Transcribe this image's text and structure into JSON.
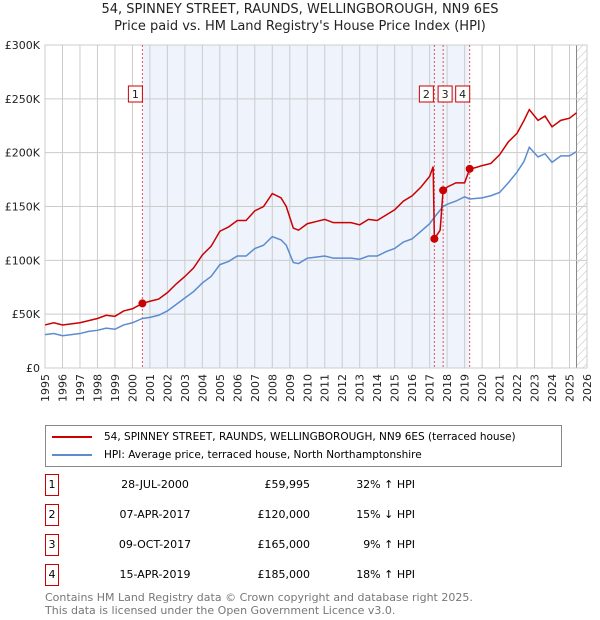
{
  "title": "54, SPINNEY STREET, RAUNDS, WELLINGBOROUGH, NN9 6ES",
  "subtitle": "Price paid vs. HM Land Registry's House Price Index (HPI)",
  "chart_data": {
    "type": "line",
    "ylim": [
      0,
      300000
    ],
    "xlim": [
      1995,
      2026
    ],
    "yticks": [
      0,
      50000,
      100000,
      150000,
      200000,
      250000,
      300000
    ],
    "ytick_labels": [
      "£0",
      "£50K",
      "£100K",
      "£150K",
      "£200K",
      "£250K",
      "£300K"
    ],
    "xticks": [
      1995,
      1996,
      1997,
      1998,
      1999,
      2000,
      2001,
      2002,
      2003,
      2004,
      2005,
      2006,
      2007,
      2008,
      2009,
      2010,
      2011,
      2012,
      2013,
      2014,
      2015,
      2016,
      2017,
      2018,
      2019,
      2020,
      2021,
      2022,
      2023,
      2024,
      2025,
      2026
    ],
    "grid": true,
    "shaded_range": [
      2000.57,
      2019.29
    ],
    "forecast_hatch_from": 2025.4,
    "series": [
      {
        "name": "54, SPINNEY STREET, RAUNDS, WELLINGBOROUGH, NN9 6ES (terraced house)",
        "color": "#cc0000",
        "points": [
          [
            1995,
            40000
          ],
          [
            1995.5,
            42000
          ],
          [
            1996,
            40000
          ],
          [
            1996.5,
            41000
          ],
          [
            1997,
            42000
          ],
          [
            1997.5,
            44000
          ],
          [
            1998,
            46000
          ],
          [
            1998.5,
            49000
          ],
          [
            1999,
            48000
          ],
          [
            1999.5,
            53000
          ],
          [
            2000,
            55000
          ],
          [
            2000.57,
            59995
          ],
          [
            2001,
            62000
          ],
          [
            2001.5,
            64000
          ],
          [
            2002,
            70000
          ],
          [
            2002.5,
            78000
          ],
          [
            2003,
            85000
          ],
          [
            2003.5,
            93000
          ],
          [
            2004,
            105000
          ],
          [
            2004.5,
            113000
          ],
          [
            2005,
            127000
          ],
          [
            2005.5,
            131000
          ],
          [
            2006,
            137000
          ],
          [
            2006.5,
            137000
          ],
          [
            2007,
            146000
          ],
          [
            2007.5,
            150000
          ],
          [
            2008,
            162000
          ],
          [
            2008.5,
            158000
          ],
          [
            2008.8,
            150000
          ],
          [
            2009.2,
            130000
          ],
          [
            2009.5,
            128000
          ],
          [
            2010,
            134000
          ],
          [
            2010.5,
            136000
          ],
          [
            2011,
            138000
          ],
          [
            2011.5,
            135000
          ],
          [
            2012,
            135000
          ],
          [
            2012.5,
            135000
          ],
          [
            2013,
            133000
          ],
          [
            2013.5,
            138000
          ],
          [
            2014,
            137000
          ],
          [
            2014.5,
            142000
          ],
          [
            2015,
            147000
          ],
          [
            2015.5,
            155000
          ],
          [
            2016,
            160000
          ],
          [
            2016.5,
            168000
          ],
          [
            2017,
            178000
          ],
          [
            2017.2,
            187000
          ],
          [
            2017.27,
            120000
          ],
          [
            2017.6,
            128000
          ],
          [
            2017.77,
            165000
          ],
          [
            2018,
            168000
          ],
          [
            2018.5,
            172000
          ],
          [
            2019,
            172000
          ],
          [
            2019.29,
            185000
          ],
          [
            2019.6,
            186000
          ],
          [
            2020,
            188000
          ],
          [
            2020.5,
            190000
          ],
          [
            2021,
            198000
          ],
          [
            2021.5,
            210000
          ],
          [
            2022,
            218000
          ],
          [
            2022.4,
            230000
          ],
          [
            2022.7,
            240000
          ],
          [
            2023.2,
            230000
          ],
          [
            2023.6,
            234000
          ],
          [
            2024,
            224000
          ],
          [
            2024.5,
            230000
          ],
          [
            2025,
            232000
          ],
          [
            2025.4,
            237000
          ]
        ]
      },
      {
        "name": "HPI: Average price, terraced house, North Northamptonshire",
        "color": "#5b8ccf",
        "points": [
          [
            1995,
            31000
          ],
          [
            1995.5,
            32000
          ],
          [
            1996,
            30000
          ],
          [
            1996.5,
            31000
          ],
          [
            1997,
            32000
          ],
          [
            1997.5,
            34000
          ],
          [
            1998,
            35000
          ],
          [
            1998.5,
            37000
          ],
          [
            1999,
            36000
          ],
          [
            1999.5,
            40000
          ],
          [
            2000,
            42000
          ],
          [
            2000.57,
            46000
          ],
          [
            2001,
            47000
          ],
          [
            2001.5,
            49000
          ],
          [
            2002,
            53000
          ],
          [
            2002.5,
            59000
          ],
          [
            2003,
            65000
          ],
          [
            2003.5,
            71000
          ],
          [
            2004,
            79000
          ],
          [
            2004.5,
            85000
          ],
          [
            2005,
            96000
          ],
          [
            2005.5,
            99000
          ],
          [
            2006,
            104000
          ],
          [
            2006.5,
            104000
          ],
          [
            2007,
            111000
          ],
          [
            2007.5,
            114000
          ],
          [
            2008,
            122000
          ],
          [
            2008.5,
            119000
          ],
          [
            2008.8,
            114000
          ],
          [
            2009.2,
            98000
          ],
          [
            2009.5,
            97000
          ],
          [
            2010,
            102000
          ],
          [
            2010.5,
            103000
          ],
          [
            2011,
            104000
          ],
          [
            2011.5,
            102000
          ],
          [
            2012,
            102000
          ],
          [
            2012.5,
            102000
          ],
          [
            2013,
            101000
          ],
          [
            2013.5,
            104000
          ],
          [
            2014,
            104000
          ],
          [
            2014.5,
            108000
          ],
          [
            2015,
            111000
          ],
          [
            2015.5,
            117000
          ],
          [
            2016,
            120000
          ],
          [
            2016.5,
            127000
          ],
          [
            2017,
            134000
          ],
          [
            2017.27,
            140000
          ],
          [
            2017.77,
            150000
          ],
          [
            2018,
            152000
          ],
          [
            2018.5,
            155000
          ],
          [
            2019,
            159000
          ],
          [
            2019.29,
            157000
          ],
          [
            2020,
            158000
          ],
          [
            2020.5,
            160000
          ],
          [
            2021,
            163000
          ],
          [
            2021.5,
            172000
          ],
          [
            2022,
            182000
          ],
          [
            2022.4,
            192000
          ],
          [
            2022.7,
            205000
          ],
          [
            2023.2,
            196000
          ],
          [
            2023.6,
            199000
          ],
          [
            2024,
            191000
          ],
          [
            2024.5,
            197000
          ],
          [
            2025,
            197000
          ],
          [
            2025.4,
            201000
          ]
        ]
      }
    ],
    "sales": [
      {
        "label": "1",
        "x": 2000.57,
        "y": 59995
      },
      {
        "label": "2",
        "x": 2017.27,
        "y": 120000
      },
      {
        "label": "3",
        "x": 2017.77,
        "y": 165000
      },
      {
        "label": "4",
        "x": 2019.29,
        "y": 185000
      }
    ]
  },
  "legend": {
    "property": "54, SPINNEY STREET, RAUNDS, WELLINGBOROUGH, NN9 6ES (terraced house)",
    "hpi": "HPI: Average price, terraced house, North Northamptonshire"
  },
  "transactions": [
    {
      "num": "1",
      "date": "28-JUL-2000",
      "price": "£59,995",
      "hpi": "32% ↑ HPI"
    },
    {
      "num": "2",
      "date": "07-APR-2017",
      "price": "£120,000",
      "hpi": "15% ↓ HPI"
    },
    {
      "num": "3",
      "date": "09-OCT-2017",
      "price": "£165,000",
      "hpi": "9% ↑ HPI"
    },
    {
      "num": "4",
      "date": "15-APR-2019",
      "price": "£185,000",
      "hpi": "18% ↑ HPI"
    }
  ],
  "footer": {
    "line1": "Contains HM Land Registry data © Crown copyright and database right 2025.",
    "line2": "This data is licensed under the Open Government Licence v3.0."
  }
}
